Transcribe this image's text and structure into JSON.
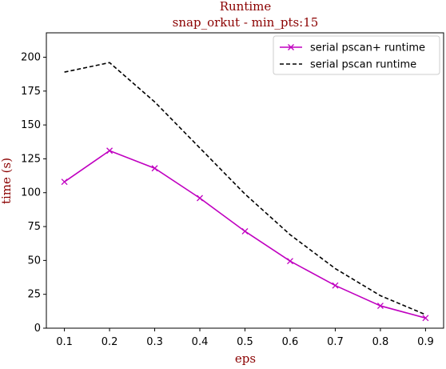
{
  "chart_data": {
    "type": "line",
    "title": "Runtime",
    "subtitle": "snap_orkut - min_pts:15",
    "xlabel": "eps",
    "ylabel": "time (s)",
    "x": [
      0.1,
      0.2,
      0.3,
      0.4,
      0.5,
      0.6,
      0.7,
      0.8,
      0.9
    ],
    "x_ticks": [
      "0.1",
      "0.2",
      "0.3",
      "0.4",
      "0.5",
      "0.6",
      "0.7",
      "0.8",
      "0.9"
    ],
    "y_ticks": [
      "0",
      "25",
      "50",
      "75",
      "100",
      "125",
      "150",
      "175",
      "200"
    ],
    "xlim": [
      0.06,
      0.94
    ],
    "ylim": [
      0,
      218
    ],
    "grid": false,
    "legend_position": "top-right",
    "series": [
      {
        "name": "serial pscan+ runtime",
        "values": [
          108,
          131,
          118,
          96,
          71.5,
          49.5,
          31.5,
          16.5,
          7.5
        ],
        "color": "#c000c0",
        "line_style": "solid",
        "marker": "x"
      },
      {
        "name": "serial pscan runtime",
        "values": [
          189,
          196,
          167,
          133,
          99,
          69,
          44,
          24,
          10
        ],
        "color": "#000000",
        "line_style": "dashed",
        "marker": "none"
      }
    ],
    "colors": {
      "title": "#8b0000",
      "axis_label": "#8b0000",
      "axes": "#000000"
    }
  }
}
